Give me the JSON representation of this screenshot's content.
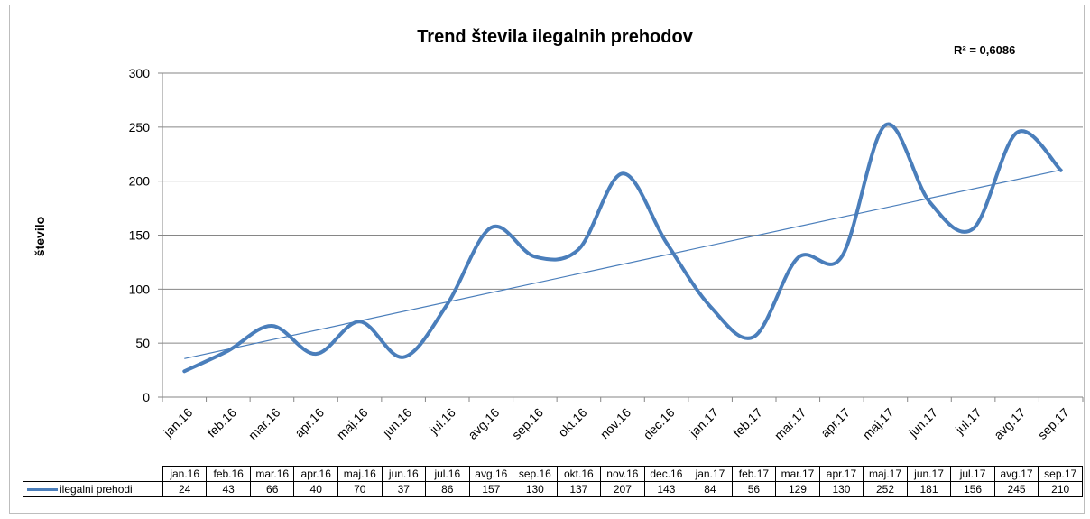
{
  "chart_data": {
    "type": "line",
    "title": "Trend števila ilegalnih prehodov",
    "annotation": "R² = 0,6086",
    "xlabel": "",
    "ylabel": "število",
    "ylim": [
      0,
      300
    ],
    "yticks": [
      "0",
      "50",
      "100",
      "150",
      "200",
      "250",
      "300"
    ],
    "grid": true,
    "legend": "data-table",
    "categories": [
      "jan.16",
      "feb.16",
      "mar.16",
      "apr.16",
      "maj.16",
      "jun.16",
      "jul.16",
      "avg.16",
      "sep.16",
      "okt.16",
      "nov.16",
      "dec.16",
      "jan.17",
      "feb.17",
      "mar.17",
      "apr.17",
      "maj.17",
      "jun.17",
      "jul.17",
      "avg.17",
      "sep.17"
    ],
    "series": [
      {
        "name": "ilegalni prehodi",
        "values": [
          24,
          43,
          66,
          40,
          70,
          37,
          86,
          157,
          130,
          137,
          207,
          143,
          84,
          56,
          129,
          130,
          252,
          181,
          156,
          245,
          210
        ],
        "value_labels": [
          "24",
          "43",
          "66",
          "40",
          "70",
          "37",
          "86",
          "157",
          "130",
          "137",
          "207",
          "143",
          "84",
          "56",
          "129",
          "130",
          "252",
          "181",
          "156",
          "245",
          "210"
        ],
        "color": "#4a7ebb",
        "smooth": true
      }
    ],
    "trendline": {
      "type": "linear",
      "color": "#4a7ebb"
    }
  }
}
